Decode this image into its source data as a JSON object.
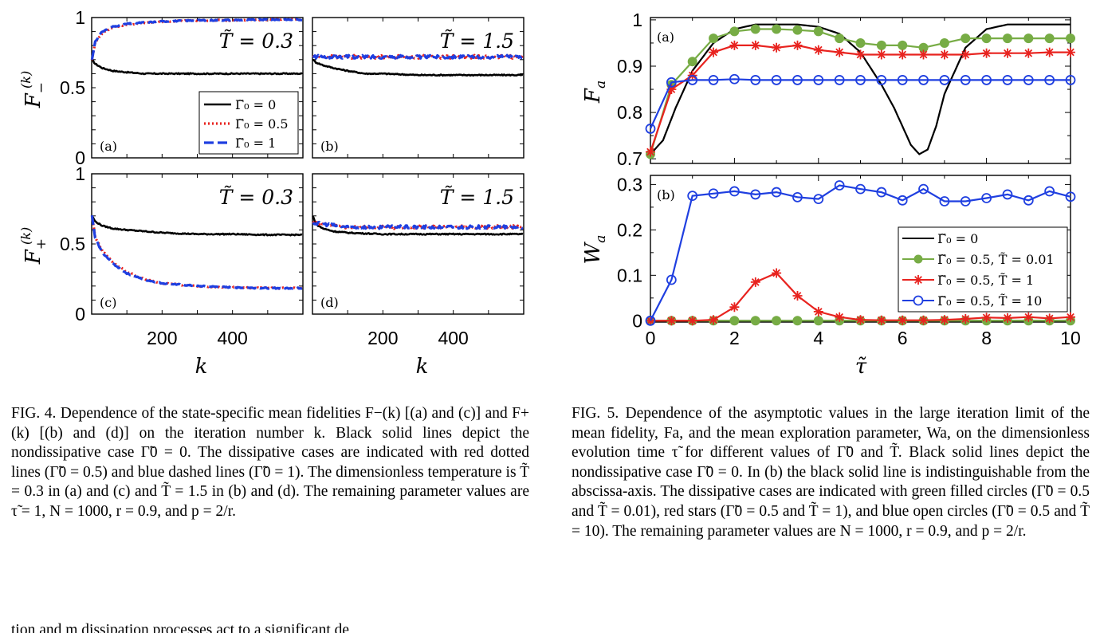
{
  "figure4": {
    "y_ticks": [
      "0",
      "0.5",
      "1"
    ],
    "x_ticks": [
      "200",
      "400"
    ],
    "xlabel": "k",
    "ylabel_top": "F",
    "ylabel_top_sup": "(k)",
    "ylabel_top_sub": "−",
    "ylabel_bottom": "F",
    "ylabel_bottom_sup": "(k)",
    "ylabel_bottom_sub": "+",
    "panels": [
      {
        "tag": "(a)",
        "temp_label": "T̃ = 0.3"
      },
      {
        "tag": "(b)",
        "temp_label": "T̃ = 1.5"
      },
      {
        "tag": "(c)",
        "temp_label": "T̃ = 0.3"
      },
      {
        "tag": "(d)",
        "temp_label": "T̃ = 1.5"
      }
    ],
    "legend": [
      "Γ̃₀ = 0",
      "Γ̃₀ = 0.5",
      "Γ̃₀ = 1"
    ],
    "colors": {
      "nondissipative": "#000000",
      "gamma_05": "#e8231f",
      "gamma_1": "#1f3fe0"
    }
  },
  "figure5": {
    "ylabel_top": "F",
    "ylabel_top_sub": "a",
    "ylabel_bottom": "W",
    "ylabel_bottom_sub": "a",
    "xlabel": "τ̃",
    "top_y_ticks": [
      "0.7",
      "0.8",
      "0.9",
      "1"
    ],
    "bottom_y_ticks": [
      "0",
      "0.1",
      "0.2",
      "0.3"
    ],
    "x_ticks": [
      "0",
      "2",
      "4",
      "6",
      "8",
      "10"
    ],
    "panel_tags": [
      "(a)",
      "(b)"
    ],
    "legend": [
      "Γ̃₀ = 0",
      "Γ̃₀ = 0.5, T̃ = 0.01",
      "Γ̃₀ = 0.5, T̃ = 1",
      "Γ̃₀ = 0.5, T̃ = 10"
    ],
    "colors": {
      "black": "#000000",
      "green": "#77ac45",
      "red": "#e8231f",
      "blue": "#1f3fe0"
    }
  },
  "caption4": "FIG. 4. Dependence of the state-specific mean fidelities F−(k) [(a) and (c)] and F+(k) [(b) and (d)] on the iteration number k. Black solid lines depict the nondissipative case Γ̃0 = 0. The dissipative cases are indicated with red dotted lines (Γ̃0 = 0.5) and blue dashed lines (Γ̃0 = 1). The dimensionless temperature is T̃ = 0.3 in (a) and (c) and T̃ = 1.5 in (b) and (d). The remaining parameter values are τ̃ = 1, N = 1000, r = 0.9, and p = 2/r.",
  "caption5": "FIG. 5. Dependence of the asymptotic values in the large iteration limit of the mean fidelity, Fa, and the mean exploration parameter, Wa, on the dimensionless evolution time τ̃ for different values of Γ̃0 and T̃. Black solid lines depict the nondissipative case Γ̃0 = 0. In (b) the black solid line is indistinguishable from the abscissa-axis. The dissipative cases are indicated with green filled circles (Γ̃0 = 0.5 and T̃ = 0.01), red stars (Γ̃0 = 0.5 and T̃ = 1), and blue open circles (Γ̃0 = 0.5 and T̃ = 10). The remaining parameter values are N = 1000, r = 0.9, and p = 2/r.",
  "body_fragment": "tion and m dissipation processes act to a significant de",
  "chart_data": [
    {
      "type": "line",
      "panel": "Fig.4 (a)",
      "xlim": [
        0,
        600
      ],
      "ylim": [
        0,
        1
      ],
      "series": [
        {
          "name": "Γ̃₀ = 0",
          "x": [
            1,
            10,
            30,
            60,
            100,
            150,
            200,
            300,
            400,
            500,
            600
          ],
          "values": [
            0.7,
            0.67,
            0.64,
            0.62,
            0.61,
            0.6,
            0.6,
            0.6,
            0.6,
            0.6,
            0.6
          ]
        },
        {
          "name": "Γ̃₀ = 0.5",
          "x": [
            1,
            10,
            30,
            60,
            100,
            150,
            200,
            300,
            400,
            500,
            600
          ],
          "values": [
            0.7,
            0.82,
            0.89,
            0.93,
            0.95,
            0.96,
            0.97,
            0.98,
            0.98,
            0.985,
            0.985
          ]
        },
        {
          "name": "Γ̃₀ = 1",
          "x": [
            1,
            10,
            30,
            60,
            100,
            150,
            200,
            300,
            400,
            500,
            600
          ],
          "values": [
            0.7,
            0.83,
            0.9,
            0.935,
            0.955,
            0.965,
            0.972,
            0.98,
            0.982,
            0.985,
            0.985
          ]
        }
      ]
    },
    {
      "type": "line",
      "panel": "Fig.4 (b)",
      "xlim": [
        0,
        600
      ],
      "ylim": [
        0,
        1
      ],
      "series": [
        {
          "name": "Γ̃₀ = 0",
          "x": [
            1,
            10,
            30,
            60,
            100,
            150,
            200,
            300,
            400,
            500,
            600
          ],
          "values": [
            0.7,
            0.68,
            0.66,
            0.64,
            0.62,
            0.6,
            0.6,
            0.59,
            0.59,
            0.59,
            0.59
          ]
        },
        {
          "name": "Γ̃₀ = 0.5",
          "x": [
            1,
            100,
            200,
            300,
            400,
            500,
            600
          ],
          "values": [
            0.72,
            0.72,
            0.72,
            0.72,
            0.72,
            0.72,
            0.72
          ]
        },
        {
          "name": "Γ̃₀ = 1",
          "x": [
            1,
            100,
            200,
            300,
            400,
            500,
            600
          ],
          "values": [
            0.72,
            0.72,
            0.72,
            0.72,
            0.72,
            0.72,
            0.72
          ]
        }
      ]
    },
    {
      "type": "line",
      "panel": "Fig.4 (c)",
      "xlim": [
        0,
        600
      ],
      "ylim": [
        0,
        1
      ],
      "series": [
        {
          "name": "Γ̃₀ = 0",
          "x": [
            1,
            10,
            30,
            60,
            100,
            150,
            200,
            300,
            400,
            500,
            600
          ],
          "values": [
            0.7,
            0.66,
            0.63,
            0.61,
            0.6,
            0.59,
            0.58,
            0.57,
            0.57,
            0.565,
            0.565
          ]
        },
        {
          "name": "Γ̃₀ = 0.5",
          "x": [
            1,
            10,
            30,
            60,
            100,
            150,
            200,
            300,
            400,
            500,
            600
          ],
          "values": [
            0.7,
            0.55,
            0.45,
            0.37,
            0.3,
            0.25,
            0.22,
            0.2,
            0.19,
            0.185,
            0.185
          ]
        },
        {
          "name": "Γ̃₀ = 1",
          "x": [
            1,
            10,
            30,
            60,
            100,
            150,
            200,
            300,
            400,
            500,
            600
          ],
          "values": [
            0.7,
            0.54,
            0.44,
            0.36,
            0.29,
            0.245,
            0.22,
            0.2,
            0.19,
            0.185,
            0.185
          ]
        }
      ]
    },
    {
      "type": "line",
      "panel": "Fig.4 (d)",
      "xlim": [
        0,
        600
      ],
      "ylim": [
        0,
        1
      ],
      "series": [
        {
          "name": "Γ̃₀ = 0",
          "x": [
            1,
            10,
            30,
            60,
            100,
            150,
            200,
            300,
            400,
            500,
            600
          ],
          "values": [
            0.7,
            0.64,
            0.61,
            0.59,
            0.58,
            0.575,
            0.57,
            0.57,
            0.57,
            0.57,
            0.57
          ]
        },
        {
          "name": "Γ̃₀ = 0.5",
          "x": [
            1,
            100,
            200,
            300,
            400,
            500,
            600
          ],
          "values": [
            0.65,
            0.62,
            0.62,
            0.62,
            0.62,
            0.62,
            0.62
          ]
        },
        {
          "name": "Γ̃₀ = 1",
          "x": [
            1,
            100,
            200,
            300,
            400,
            500,
            600
          ],
          "values": [
            0.65,
            0.62,
            0.62,
            0.62,
            0.62,
            0.62,
            0.62
          ]
        }
      ]
    },
    {
      "type": "line",
      "panel": "Fig.5 (a)",
      "xlim": [
        0,
        10
      ],
      "ylim": [
        0.69,
        1.005
      ],
      "series": [
        {
          "name": "Γ̃₀ = 0",
          "x": [
            0,
            0.3,
            0.6,
            1,
            1.5,
            2,
            2.5,
            3,
            3.5,
            4,
            4.5,
            5,
            5.5,
            5.8,
            6,
            6.2,
            6.4,
            6.6,
            6.8,
            7,
            7.5,
            8,
            8.5,
            9,
            9.5,
            10
          ],
          "values": [
            0.71,
            0.74,
            0.81,
            0.89,
            0.95,
            0.98,
            0.99,
            0.99,
            0.99,
            0.985,
            0.97,
            0.93,
            0.86,
            0.81,
            0.77,
            0.73,
            0.71,
            0.72,
            0.77,
            0.84,
            0.94,
            0.98,
            0.99,
            0.99,
            0.99,
            0.99
          ]
        },
        {
          "name": "Γ̃₀ = 0.5, T̃ = 0.01",
          "x": [
            0,
            0.5,
            1,
            1.5,
            2,
            2.5,
            3,
            3.5,
            4,
            4.5,
            5,
            5.5,
            6,
            6.5,
            7,
            7.5,
            8,
            8.5,
            9,
            9.5,
            10
          ],
          "values": [
            0.71,
            0.86,
            0.91,
            0.96,
            0.975,
            0.98,
            0.98,
            0.978,
            0.975,
            0.96,
            0.95,
            0.945,
            0.945,
            0.94,
            0.95,
            0.96,
            0.96,
            0.96,
            0.96,
            0.96,
            0.96
          ]
        },
        {
          "name": "Γ̃₀ = 0.5, T̃ = 1",
          "x": [
            0,
            0.5,
            1,
            1.5,
            2,
            2.5,
            3,
            3.5,
            4,
            4.5,
            5,
            5.5,
            6,
            6.5,
            7,
            7.5,
            8,
            8.5,
            9,
            9.5,
            10
          ],
          "values": [
            0.715,
            0.85,
            0.88,
            0.93,
            0.945,
            0.945,
            0.94,
            0.945,
            0.935,
            0.93,
            0.925,
            0.925,
            0.925,
            0.925,
            0.925,
            0.925,
            0.928,
            0.928,
            0.928,
            0.93,
            0.93
          ]
        },
        {
          "name": "Γ̃₀ = 0.5, T̃ = 10",
          "x": [
            0,
            0.5,
            1,
            1.5,
            2,
            2.5,
            3,
            3.5,
            4,
            4.5,
            5,
            5.5,
            6,
            6.5,
            7,
            7.5,
            8,
            8.5,
            9,
            9.5,
            10
          ],
          "values": [
            0.765,
            0.865,
            0.87,
            0.87,
            0.872,
            0.87,
            0.87,
            0.87,
            0.87,
            0.87,
            0.87,
            0.87,
            0.87,
            0.87,
            0.87,
            0.87,
            0.87,
            0.87,
            0.87,
            0.87,
            0.87
          ]
        }
      ]
    },
    {
      "type": "line",
      "panel": "Fig.5 (b)",
      "xlim": [
        0,
        10
      ],
      "ylim": [
        -0.003,
        0.32
      ],
      "series": [
        {
          "name": "Γ̃₀ = 0",
          "x": [
            0,
            10
          ],
          "values": [
            0,
            0
          ]
        },
        {
          "name": "Γ̃₀ = 0.5, T̃ = 0.01",
          "x": [
            0,
            0.5,
            1,
            1.5,
            2,
            2.5,
            3,
            3.5,
            4,
            4.5,
            5,
            5.5,
            6,
            6.5,
            7,
            7.5,
            8,
            8.5,
            9,
            9.5,
            10
          ],
          "values": [
            0,
            0,
            0,
            0,
            0,
            0,
            0,
            0,
            0,
            0,
            0,
            0,
            0,
            0,
            0,
            0,
            0,
            0,
            0,
            0,
            0
          ]
        },
        {
          "name": "Γ̃₀ = 0.5, T̃ = 1",
          "x": [
            0,
            0.5,
            1,
            1.5,
            2,
            2.5,
            3,
            3.5,
            4,
            4.5,
            5,
            5.5,
            6,
            6.5,
            7,
            7.5,
            8,
            8.5,
            9,
            9.5,
            10
          ],
          "values": [
            0,
            0,
            0,
            0.002,
            0.03,
            0.085,
            0.105,
            0.055,
            0.02,
            0.008,
            0.002,
            0.001,
            0.001,
            0.001,
            0.002,
            0.004,
            0.007,
            0.006,
            0.008,
            0.005,
            0.008
          ]
        },
        {
          "name": "Γ̃₀ = 0.5, T̃ = 10",
          "x": [
            0,
            0.5,
            1,
            1.5,
            2,
            2.5,
            3,
            3.5,
            4,
            4.5,
            5,
            5.5,
            6,
            6.5,
            7,
            7.5,
            8,
            8.5,
            9,
            9.5,
            10
          ],
          "values": [
            0,
            0.09,
            0.275,
            0.28,
            0.285,
            0.278,
            0.283,
            0.272,
            0.268,
            0.298,
            0.29,
            0.283,
            0.265,
            0.29,
            0.263,
            0.263,
            0.27,
            0.278,
            0.265,
            0.285,
            0.273
          ]
        }
      ]
    }
  ]
}
